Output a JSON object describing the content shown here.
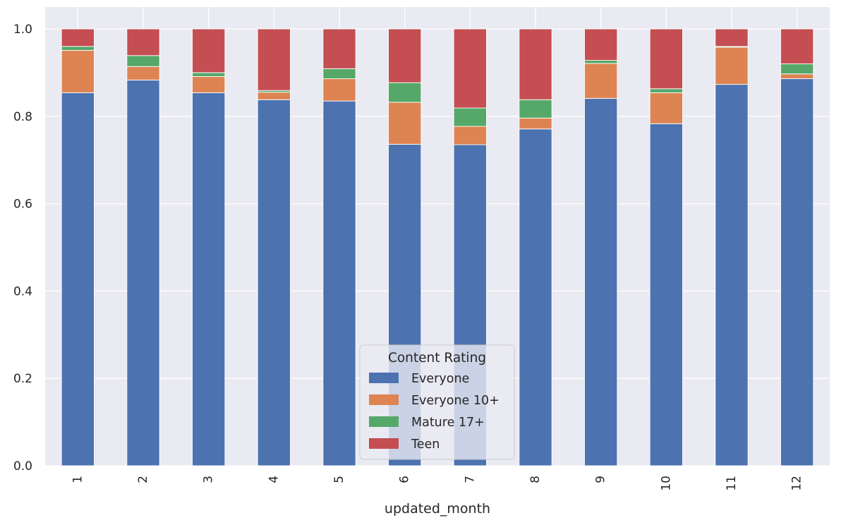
{
  "chart_data": {
    "type": "bar",
    "stacked": true,
    "orientation": "vertical",
    "title": "",
    "xlabel": "updated_month",
    "ylabel": "",
    "ylim": [
      0,
      1.0
    ],
    "yticks": [
      "0.0",
      "0.2",
      "0.4",
      "0.6",
      "0.8",
      "1.0"
    ],
    "categories": [
      "1",
      "2",
      "3",
      "4",
      "5",
      "6",
      "7",
      "8",
      "9",
      "10",
      "11",
      "12"
    ],
    "series": [
      {
        "name": "Everyone",
        "color": "#4c72b0",
        "values": [
          0.854,
          0.883,
          0.854,
          0.838,
          0.835,
          0.736,
          0.735,
          0.771,
          0.841,
          0.783,
          0.873,
          0.886
        ]
      },
      {
        "name": "Everyone 10+",
        "color": "#dd8452",
        "values": [
          0.097,
          0.031,
          0.037,
          0.017,
          0.051,
          0.096,
          0.042,
          0.025,
          0.08,
          0.071,
          0.085,
          0.011
        ]
      },
      {
        "name": "Mature 17+",
        "color": "#55a868",
        "values": [
          0.009,
          0.025,
          0.009,
          0.004,
          0.023,
          0.045,
          0.042,
          0.042,
          0.007,
          0.009,
          0.002,
          0.023
        ]
      },
      {
        "name": "Teen",
        "color": "#c44e52",
        "values": [
          0.04,
          0.061,
          0.1,
          0.141,
          0.091,
          0.123,
          0.181,
          0.162,
          0.072,
          0.137,
          0.04,
          0.08
        ]
      }
    ],
    "legend": {
      "title": "Content Rating",
      "placement": "bottom-center"
    },
    "grid": true,
    "background": "#eaeaf2"
  }
}
